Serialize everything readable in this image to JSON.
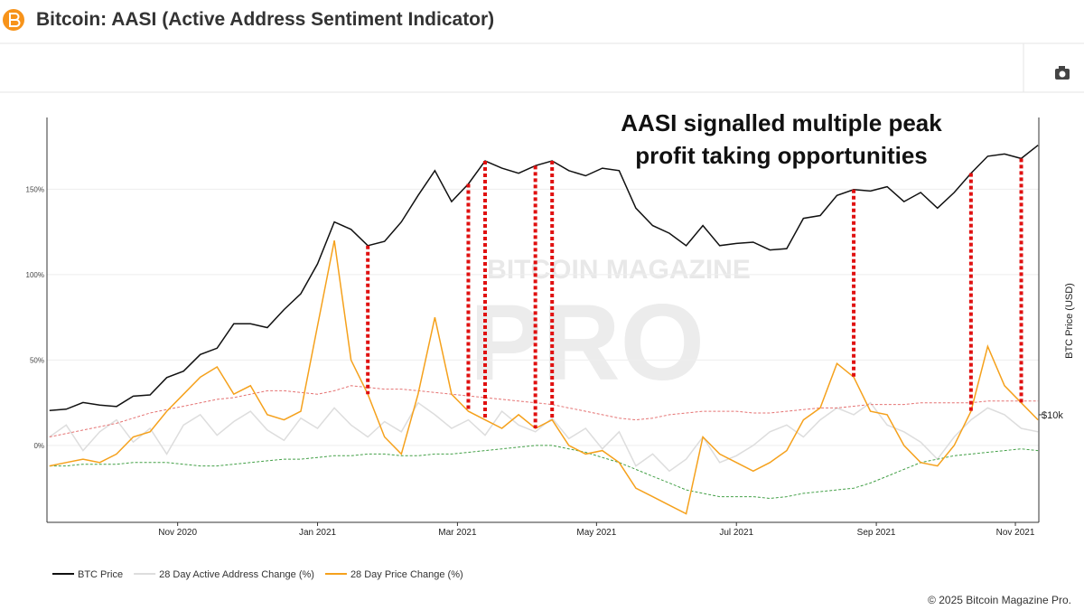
{
  "header": {
    "title": "Bitcoin: AASI (Active Address Sentiment Indicator)"
  },
  "footer": "© 2025 Bitcoin Magazine Pro.",
  "chart_data": {
    "type": "line",
    "annotation": "AASI signalled multiple peak profit taking opportunities",
    "watermark_top": "BITCOIN MAGAZINE",
    "watermark_main": "PRO",
    "y2_label": "BTC Price (USD)",
    "x": [
      2020.68,
      2020.7,
      2020.72,
      2020.74,
      2020.76,
      2020.78,
      2020.8,
      2020.82,
      2020.84,
      2020.86,
      2020.88,
      2020.9,
      2020.92,
      2020.94,
      2020.96,
      2020.98,
      2021.0,
      2021.02,
      2021.04,
      2021.06,
      2021.08,
      2021.1,
      2021.12,
      2021.14,
      2021.16,
      2021.18,
      2021.2,
      2021.22,
      2021.24,
      2021.26,
      2021.28,
      2021.3,
      2021.32,
      2021.34,
      2021.36,
      2021.38,
      2021.4,
      2021.42,
      2021.44,
      2021.46,
      2021.48,
      2021.5,
      2021.52,
      2021.54,
      2021.56,
      2021.58,
      2021.6,
      2021.62,
      2021.64,
      2021.66,
      2021.68,
      2021.7,
      2021.72,
      2021.74,
      2021.76,
      2021.78,
      2021.8,
      2021.82,
      2021.84,
      2021.86
    ],
    "xlim": [
      2020.677,
      2021.861
    ],
    "xticks": [
      {
        "value": 2020.833,
        "label": "Nov 2020"
      },
      {
        "value": 2021.0,
        "label": "Jan 2021"
      },
      {
        "value": 2021.167,
        "label": "Mar 2021"
      },
      {
        "value": 2021.333,
        "label": "May 2021"
      },
      {
        "value": 2021.5,
        "label": "Jul 2021"
      },
      {
        "value": 2021.667,
        "label": "Sep 2021"
      },
      {
        "value": 2021.833,
        "label": "Nov 2021"
      }
    ],
    "ylim": [
      -45,
      192
    ],
    "yticks": [
      {
        "value": 0,
        "label": "0%"
      },
      {
        "value": 50,
        "label": "50%"
      },
      {
        "value": 100,
        "label": "100%"
      },
      {
        "value": 150,
        "label": "150%"
      }
    ],
    "y2lim": [
      4680,
      81500
    ],
    "y2log": true,
    "y2ticks": [
      {
        "value": 10000,
        "label": "$10k"
      }
    ],
    "grid": true,
    "series": [
      {
        "name": "BTC Price",
        "color": "#111111",
        "axis": "y2",
        "values": [
          10300,
          10400,
          10900,
          10700,
          10600,
          11400,
          11500,
          13000,
          13600,
          15300,
          16000,
          19000,
          19000,
          18500,
          21000,
          23500,
          29000,
          39000,
          37000,
          33000,
          34000,
          39000,
          47000,
          56000,
          45000,
          51000,
          60000,
          57000,
          55000,
          58000,
          60000,
          56000,
          54000,
          57000,
          56000,
          43000,
          38000,
          36000,
          33000,
          38000,
          33000,
          33500,
          33800,
          32000,
          32300,
          40000,
          40800,
          47000,
          49000,
          48500,
          50000,
          45000,
          48000,
          43000,
          48000,
          55000,
          62000,
          63000,
          61000,
          67000
        ]
      },
      {
        "name": "28 Day Active Address Change (%)",
        "color": "#dddddd",
        "values": [
          5,
          12,
          -3,
          8,
          15,
          2,
          10,
          -5,
          12,
          18,
          6,
          14,
          20,
          9,
          3,
          16,
          10,
          22,
          12,
          5,
          14,
          8,
          25,
          18,
          10,
          15,
          6,
          20,
          12,
          8,
          16,
          4,
          10,
          -2,
          8,
          -12,
          -5,
          -15,
          -8,
          5,
          -10,
          -6,
          0,
          8,
          12,
          5,
          15,
          22,
          18,
          25,
          12,
          8,
          2,
          -8,
          5,
          15,
          22,
          18,
          10,
          8
        ]
      },
      {
        "name": "28 Day Price Change (%)",
        "color": "#f5a11c",
        "values": [
          -12,
          -10,
          -8,
          -10,
          -5,
          5,
          8,
          20,
          30,
          40,
          46,
          30,
          35,
          18,
          15,
          20,
          70,
          120,
          50,
          30,
          5,
          -5,
          30,
          75,
          30,
          20,
          15,
          10,
          18,
          10,
          15,
          0,
          -5,
          -3,
          -10,
          -25,
          -30,
          -35,
          -40,
          5,
          -5,
          -10,
          -15,
          -10,
          -3,
          15,
          22,
          48,
          40,
          20,
          18,
          0,
          -10,
          -12,
          0,
          20,
          58,
          35,
          25,
          15
        ]
      },
      {
        "color": "#e57373",
        "dashed": true,
        "values": [
          5,
          7,
          9,
          11,
          13,
          16,
          19,
          21,
          23,
          25,
          27,
          28,
          30,
          32,
          32,
          31,
          30,
          32,
          35,
          34,
          33,
          33,
          32,
          31,
          30,
          29,
          28,
          27,
          26,
          25,
          24,
          22,
          20,
          18,
          16,
          15,
          16,
          18,
          19,
          20,
          20,
          20,
          19,
          19,
          20,
          21,
          22,
          22,
          23,
          24,
          24,
          24,
          25,
          25,
          25,
          25,
          26,
          26,
          26,
          26
        ]
      },
      {
        "color": "#43a047",
        "dashed": true,
        "values": [
          -12,
          -12,
          -11,
          -11,
          -11,
          -10,
          -10,
          -10,
          -11,
          -12,
          -12,
          -11,
          -10,
          -9,
          -8,
          -8,
          -7,
          -6,
          -6,
          -5,
          -5,
          -6,
          -6,
          -5,
          -5,
          -4,
          -3,
          -2,
          -1,
          0,
          0,
          -2,
          -4,
          -7,
          -10,
          -14,
          -18,
          -22,
          -26,
          -28,
          -30,
          -30,
          -30,
          -31,
          -30,
          -28,
          -27,
          -26,
          -25,
          -22,
          -18,
          -14,
          -10,
          -8,
          -6,
          -5,
          -4,
          -3,
          -2,
          -3
        ]
      }
    ],
    "signals": [
      2021.06,
      2021.18,
      2021.2,
      2021.26,
      2021.28,
      2021.64,
      2021.78,
      2021.84
    ],
    "signal_color": "#e01010"
  }
}
